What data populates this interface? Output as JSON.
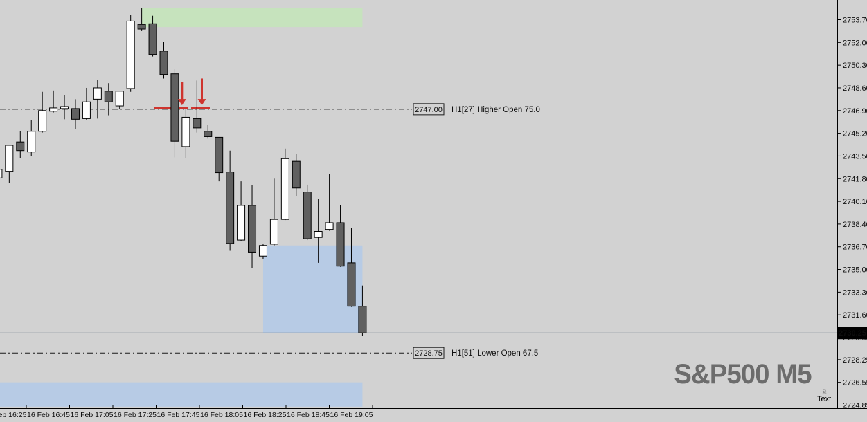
{
  "chart": {
    "watermark": "S&P500 M5",
    "text_object": {
      "label": "Text",
      "icon": "skull-icon"
    }
  },
  "chart_data": {
    "type": "candlestick",
    "symbol": "S&P500",
    "timeframe": "M5",
    "title": "S&P500 M5",
    "date": "16 Feb",
    "price_axis": {
      "min_visible": 2723.6,
      "max_visible": 2755.2,
      "ticks": [
        "2753.70",
        "2752.00",
        "2750.30",
        "2748.60",
        "2746.90",
        "2745.20",
        "2743.50",
        "2741.80",
        "2740.10",
        "2738.40",
        "2736.70",
        "2735.00",
        "2733.30",
        "2731.60",
        "2729.90",
        "2728.25",
        "2726.55",
        "2724.85"
      ],
      "current": 2730.25,
      "current_label": "2730.25"
    },
    "time_axis": {
      "labels": [
        "16 Feb 16:25",
        "16 Feb 16:45",
        "16 Feb 17:05",
        "16 Feb 17:25",
        "16 Feb 17:45",
        "16 Feb 18:05",
        "16 Feb 18:25",
        "16 Feb 18:45",
        "16 Feb 19:05"
      ],
      "interval_minutes": 5
    },
    "candles": [
      {
        "t": "16:25",
        "o": 2741.85,
        "h": 2742.6,
        "l": 2741.45,
        "c": 2742.5
      },
      {
        "t": "16:30",
        "o": 2742.35,
        "h": 2744.3,
        "l": 2741.45,
        "c": 2744.3
      },
      {
        "t": "16:35",
        "o": 2744.55,
        "h": 2745.35,
        "l": 2743.35,
        "c": 2743.9
      },
      {
        "t": "16:40",
        "o": 2743.8,
        "h": 2746.2,
        "l": 2743.5,
        "c": 2745.35
      },
      {
        "t": "16:45",
        "o": 2745.35,
        "h": 2748.3,
        "l": 2745.25,
        "c": 2746.9
      },
      {
        "t": "16:50",
        "o": 2746.85,
        "h": 2748.4,
        "l": 2746.75,
        "c": 2747.1
      },
      {
        "t": "16:55",
        "o": 2747.05,
        "h": 2748.05,
        "l": 2746.25,
        "c": 2747.2
      },
      {
        "t": "17:00",
        "o": 2747.05,
        "h": 2747.75,
        "l": 2745.5,
        "c": 2746.25
      },
      {
        "t": "17:05",
        "o": 2746.3,
        "h": 2748.6,
        "l": 2746.2,
        "c": 2747.55
      },
      {
        "t": "17:10",
        "o": 2747.75,
        "h": 2749.2,
        "l": 2746.3,
        "c": 2748.6
      },
      {
        "t": "17:15",
        "o": 2748.35,
        "h": 2748.95,
        "l": 2746.55,
        "c": 2747.55
      },
      {
        "t": "17:20",
        "o": 2747.25,
        "h": 2748.35,
        "l": 2747.0,
        "c": 2748.35
      },
      {
        "t": "17:25",
        "o": 2748.55,
        "h": 2754.05,
        "l": 2748.3,
        "c": 2753.6
      },
      {
        "t": "17:30",
        "o": 2753.35,
        "h": 2754.6,
        "l": 2752.85,
        "c": 2753.0
      },
      {
        "t": "17:35",
        "o": 2753.4,
        "h": 2754.0,
        "l": 2750.95,
        "c": 2751.1
      },
      {
        "t": "17:40",
        "o": 2751.35,
        "h": 2752.05,
        "l": 2749.3,
        "c": 2749.6
      },
      {
        "t": "17:45",
        "o": 2749.65,
        "h": 2750.0,
        "l": 2743.4,
        "c": 2744.6
      },
      {
        "t": "17:50",
        "o": 2744.2,
        "h": 2747.05,
        "l": 2743.35,
        "c": 2746.4
      },
      {
        "t": "17:55",
        "o": 2746.3,
        "h": 2749.15,
        "l": 2745.25,
        "c": 2745.6
      },
      {
        "t": "18:00",
        "o": 2745.35,
        "h": 2745.85,
        "l": 2744.8,
        "c": 2744.95
      },
      {
        "t": "18:05",
        "o": 2744.9,
        "h": 2744.9,
        "l": 2741.6,
        "c": 2742.25
      },
      {
        "t": "18:10",
        "o": 2742.3,
        "h": 2743.9,
        "l": 2736.4,
        "c": 2736.95
      },
      {
        "t": "18:15",
        "o": 2737.2,
        "h": 2741.6,
        "l": 2737.1,
        "c": 2739.8
      },
      {
        "t": "18:20",
        "o": 2739.8,
        "h": 2741.3,
        "l": 2735.1,
        "c": 2736.3
      },
      {
        "t": "18:25",
        "o": 2736.0,
        "h": 2736.9,
        "l": 2735.8,
        "c": 2736.8
      },
      {
        "t": "18:30",
        "o": 2736.9,
        "h": 2741.8,
        "l": 2736.8,
        "c": 2738.75
      },
      {
        "t": "18:35",
        "o": 2738.75,
        "h": 2744.05,
        "l": 2738.7,
        "c": 2743.3
      },
      {
        "t": "18:40",
        "o": 2743.1,
        "h": 2743.65,
        "l": 2740.5,
        "c": 2741.1
      },
      {
        "t": "18:45",
        "o": 2740.8,
        "h": 2741.35,
        "l": 2737.2,
        "c": 2737.3
      },
      {
        "t": "18:50",
        "o": 2737.4,
        "h": 2740.3,
        "l": 2735.5,
        "c": 2737.85
      },
      {
        "t": "18:55",
        "o": 2738.0,
        "h": 2742.15,
        "l": 2737.9,
        "c": 2738.5
      },
      {
        "t": "19:00",
        "o": 2738.5,
        "h": 2739.8,
        "l": 2735.2,
        "c": 2735.25
      },
      {
        "t": "19:05",
        "o": 2735.5,
        "h": 2738.1,
        "l": 2732.2,
        "c": 2732.25
      },
      {
        "t": "19:10",
        "o": 2732.25,
        "h": 2733.8,
        "l": 2730.05,
        "c": 2730.25
      }
    ],
    "levels": [
      {
        "price": 2747.0,
        "price_label": "2747.00",
        "text": "H1[27] Higher Open 75.0"
      },
      {
        "price": 2728.75,
        "price_label": "2728.75",
        "text": "H1[51] Lower Open 67.5"
      }
    ],
    "zones": [
      {
        "name": "supply-zone-green",
        "color_key": "green",
        "price_top": 2754.6,
        "price_bottom": 2753.15,
        "start_index": 13
      },
      {
        "name": "demand-zone-blue-upper",
        "color_key": "blue",
        "price_top": 2736.8,
        "price_bottom": 2730.25,
        "start_index": 24
      },
      {
        "name": "demand-zone-blue-lower",
        "color_key": "blue",
        "price_top": 2726.55,
        "price_bottom": 2724.73,
        "start_index": -3
      }
    ],
    "arrows": [
      {
        "index": 16.65,
        "price_from": 2749.05,
        "price_to": 2747.3
      },
      {
        "index": 18.45,
        "price_from": 2749.3,
        "price_to": 2747.3
      }
    ],
    "red_dashes": {
      "price": 2747.1,
      "segments_index": [
        [
          14.15,
          16.16
        ],
        [
          16.35,
          17.22
        ],
        [
          17.48,
          19.17
        ]
      ]
    },
    "colors": {
      "background": "#d2d2d2",
      "bull": "#ffffff",
      "bear": "#606060",
      "outline": "#000000",
      "green_zone": "#c6e3bd",
      "blue_zone": "#b7cbe5",
      "arrow": "#cf342e",
      "current_line": "#7d8593",
      "tag_bg": "#000000",
      "tag_fg": "#ffffff",
      "watermark": "#6c6c6c"
    }
  }
}
